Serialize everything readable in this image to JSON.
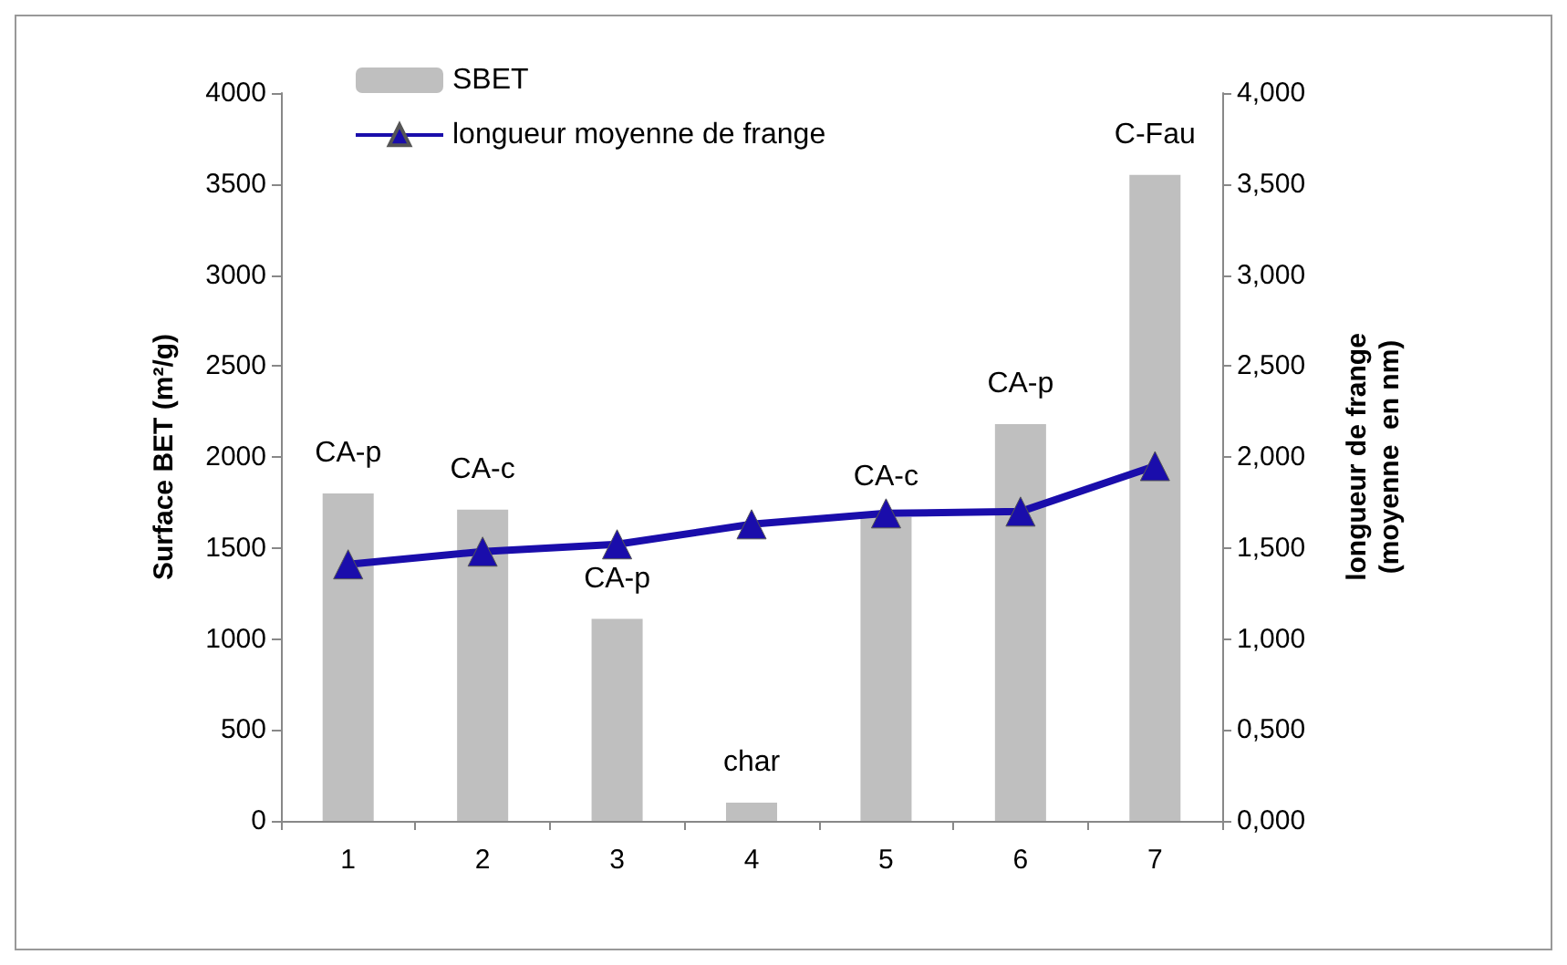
{
  "chart_data": {
    "type": "bar",
    "categories": [
      "1",
      "2",
      "3",
      "4",
      "5",
      "6",
      "7"
    ],
    "ylabel": "Surface BET (m²/g)",
    "y2label": "longueur de frange\n(moyenne  en nm)",
    "series": [
      {
        "name": "SBET",
        "color": "#bfbfbf",
        "values": [
          1800,
          1710,
          1110,
          100,
          1670,
          2180,
          3550
        ]
      },
      {
        "name": "longueur moyenne de frange",
        "type": "line",
        "axis": "y2",
        "color": "#1a0dab",
        "marker": "triangle",
        "line_style": "solid",
        "values": [
          1.41,
          1.48,
          1.52,
          1.63,
          1.69,
          1.7,
          1.95
        ]
      }
    ],
    "ylim": [
      0,
      4000
    ],
    "yticks": [
      0,
      500,
      1000,
      1500,
      2000,
      2500,
      3000,
      3500,
      4000
    ],
    "y2lim": [
      0,
      4
    ],
    "y2ticks": [
      {
        "value": 0,
        "label": "0,000"
      },
      {
        "value": 0.5,
        "label": "0,500"
      },
      {
        "value": 1,
        "label": "1,000"
      },
      {
        "value": 1.5,
        "label": "1,500"
      },
      {
        "value": 2,
        "label": "2,000"
      },
      {
        "value": 2.5,
        "label": "2,500"
      },
      {
        "value": 3,
        "label": "3,000"
      },
      {
        "value": 3.5,
        "label": "3,500"
      },
      {
        "value": 4,
        "label": "4,000"
      }
    ],
    "annotations": [
      {
        "text": "CA-p",
        "x": "1",
        "y": 1800
      },
      {
        "text": "CA-c",
        "x": "2",
        "y": 1710
      },
      {
        "text": "CA-p",
        "x": "3",
        "y": 1110
      },
      {
        "text": "char",
        "x": "4",
        "y": 100
      },
      {
        "text": "CA-c",
        "x": "5",
        "y": 1670
      },
      {
        "text": "CA-p",
        "x": "6",
        "y": 2180
      },
      {
        "text": "C-Fau",
        "x": "7",
        "y": 3550
      }
    ],
    "grid": false,
    "legend": "top left"
  }
}
